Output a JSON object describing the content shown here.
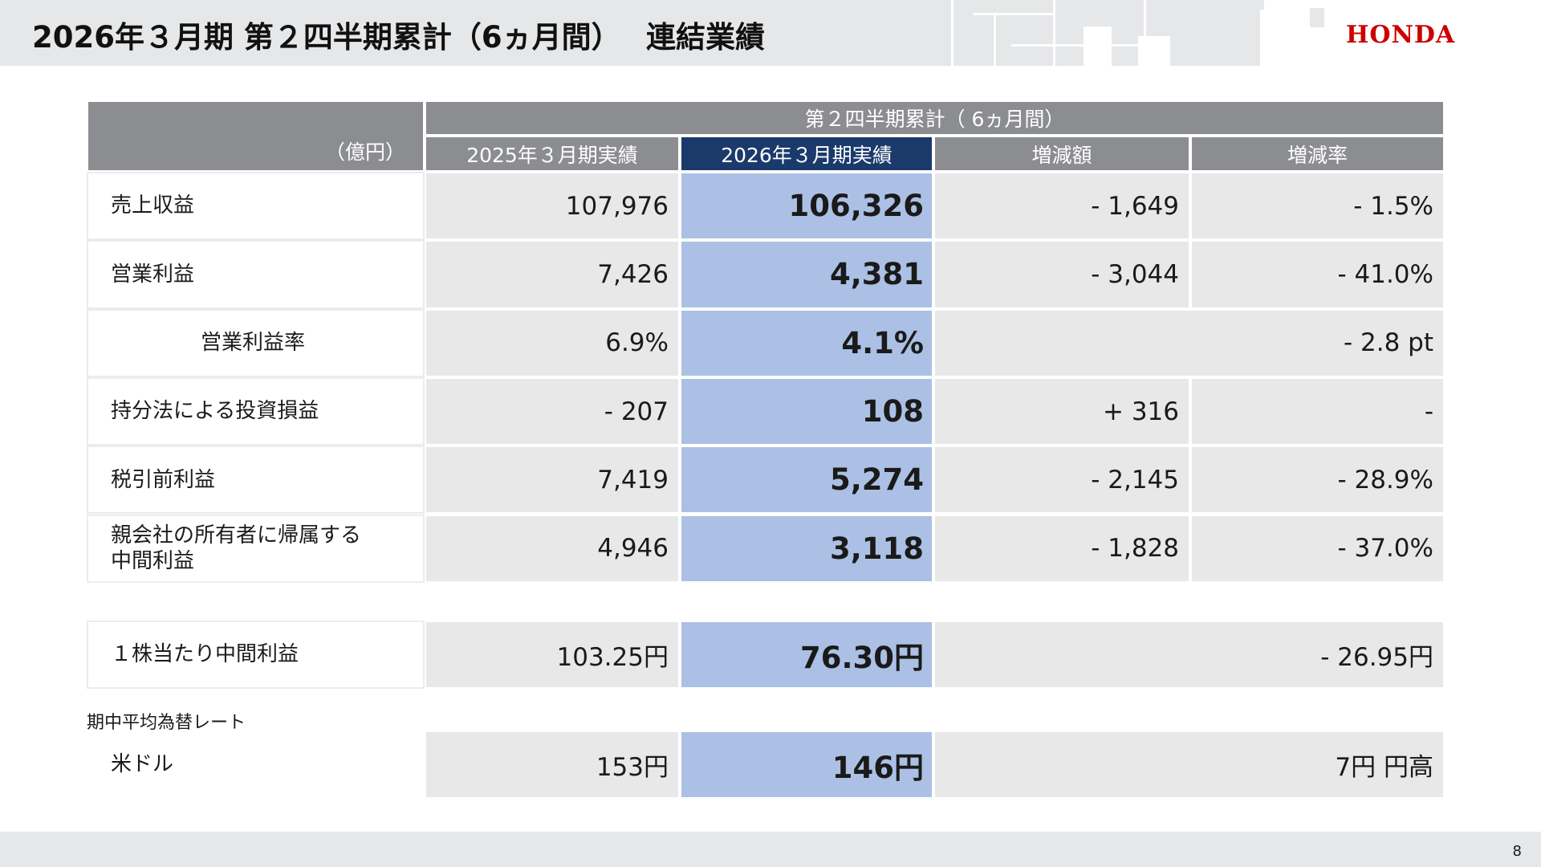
{
  "header": {
    "title": "2026年３月期 第２四半期累計（6ヵ月間）　 連結業績",
    "logo": "HONDA"
  },
  "table": {
    "unit": "（億円）",
    "group_header": "第２四半期累計（ 6ヵ月間）",
    "columns": [
      "2025年３月期実績",
      "2026年３月期実績",
      "増減額",
      "増減率"
    ],
    "rows": [
      {
        "label": "売上収益",
        "prev": "107,976",
        "curr": "106,326",
        "diff": "- 1,649",
        "rate": "- 1.5%"
      },
      {
        "label": "営業利益",
        "prev": "7,426",
        "curr": "4,381",
        "diff": "- 3,044",
        "rate": "- 41.0%"
      },
      {
        "label": "営業利益率",
        "prev": "6.9%",
        "curr": "4.1%",
        "diff": "",
        "rate": "- 2.8 pt"
      },
      {
        "label": "持分法による投資損益",
        "prev": "- 207",
        "curr": "108",
        "diff": "+ 316",
        "rate": "-"
      },
      {
        "label": "税引前利益",
        "prev": "7,419",
        "curr": "5,274",
        "diff": "- 2,145",
        "rate": "- 28.9%"
      },
      {
        "label": "親会社の所有者に帰属する\n中間利益",
        "prev": "4,946",
        "curr": "3,118",
        "diff": "- 1,828",
        "rate": "- 37.0%"
      }
    ],
    "eps": {
      "label": "１株当たり中間利益",
      "prev": "103.25円",
      "curr": "76.30円",
      "change": "- 26.95円"
    },
    "fx_title": "期中平均為替レート",
    "fx": {
      "label": "米ドル",
      "prev": "153円",
      "curr": "146円",
      "change": "7円 円高"
    }
  },
  "colors": {
    "header_gray": "#8c8d91",
    "highlight_header": "#1a3a6b",
    "highlight_cell": "#abc0e4",
    "brand_red": "#cc0000"
  },
  "footer": {
    "page": "8"
  }
}
